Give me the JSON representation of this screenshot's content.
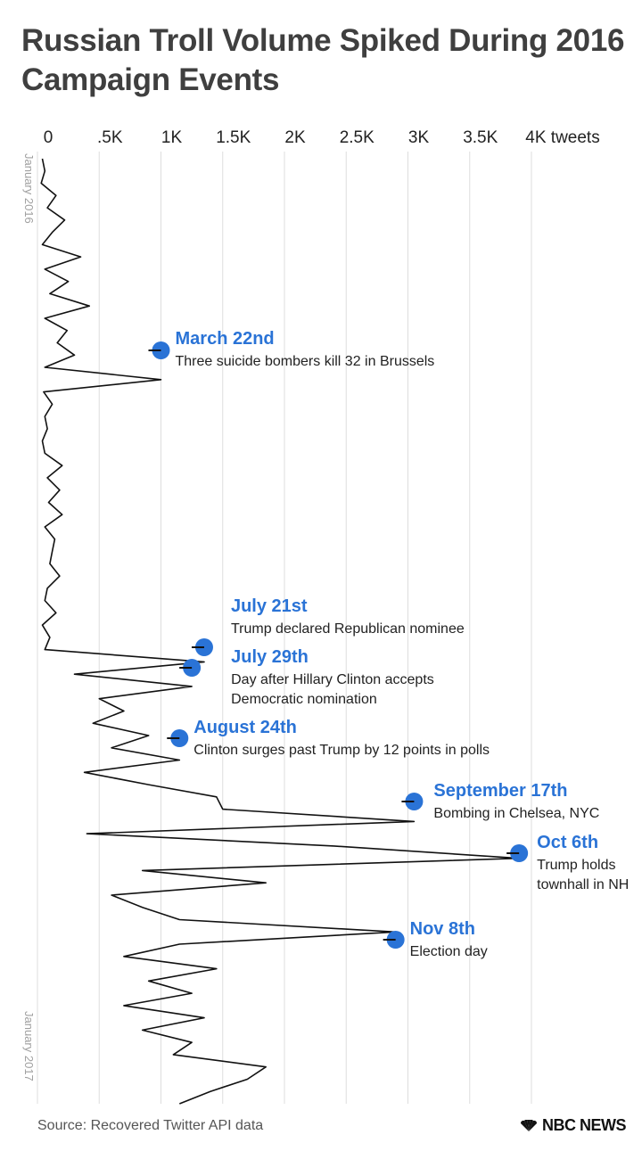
{
  "title": "Russian Troll Volume Spiked During 2016 Campaign Events",
  "source": "Source: Recovered Twitter API data",
  "brand": "NBC NEWS",
  "colors": {
    "accent": "#2a73d6",
    "line": "#111111",
    "grid": "#dddddd"
  },
  "chart_data": {
    "type": "line",
    "orientation": "vertical-time",
    "title": "Russian Troll Volume Spiked During 2016 Campaign Events",
    "x_ticks": [
      "0",
      ".5K",
      "1K",
      "1.5K",
      "2K",
      "2.5K",
      "3K",
      "3.5K",
      "4K tweets"
    ],
    "x_tick_values": [
      0,
      500,
      1000,
      1500,
      2000,
      2500,
      3000,
      3500,
      4000
    ],
    "xlim": [
      0,
      4000
    ],
    "y_labels": [
      "January 2016",
      "January 2017"
    ],
    "grid": true,
    "series": [
      {
        "values_by_week_approx": [
          40,
          60,
          30,
          150,
          80,
          220,
          120,
          40,
          350,
          60,
          250,
          100,
          420,
          60,
          240,
          160,
          300,
          60,
          1000,
          50,
          120,
          60,
          80,
          40,
          60,
          200,
          80,
          180,
          90,
          200,
          60,
          140,
          120,
          100,
          180,
          80,
          60,
          150,
          40,
          100,
          60,
          1350,
          300,
          1250,
          500,
          700,
          450,
          900,
          600,
          1150,
          380,
          900,
          1450,
          1500,
          3050,
          400,
          2400,
          3900,
          850,
          1850,
          600,
          850,
          1150,
          2900,
          1150,
          700,
          1450,
          900,
          1250,
          700,
          1350,
          850,
          1250,
          1100,
          1850,
          1700,
          1400,
          1150
        ]
      }
    ],
    "annotations": [
      {
        "label": "March 22nd",
        "desc": [
          "Three suicide bombers kill 32 in Brussels"
        ],
        "value": 1000
      },
      {
        "label": "July 21st",
        "desc": [
          "Trump declared Republican nominee"
        ],
        "value": 1350
      },
      {
        "label": "July 29th",
        "desc": [
          "Day after Hillary Clinton accepts",
          "Democratic nomination"
        ],
        "value": 1250
      },
      {
        "label": "August 24th",
        "desc": [
          "Clinton surges past Trump by 12 points in polls"
        ],
        "value": 1150
      },
      {
        "label": "September 17th",
        "desc": [
          "Bombing in Chelsea, NYC"
        ],
        "value": 3050
      },
      {
        "label": "Oct 6th",
        "desc": [
          "Trump holds",
          "townhall in NH"
        ],
        "value": 3900
      },
      {
        "label": "Nov 8th",
        "desc": [
          "Election day"
        ],
        "value": 2900
      }
    ]
  }
}
